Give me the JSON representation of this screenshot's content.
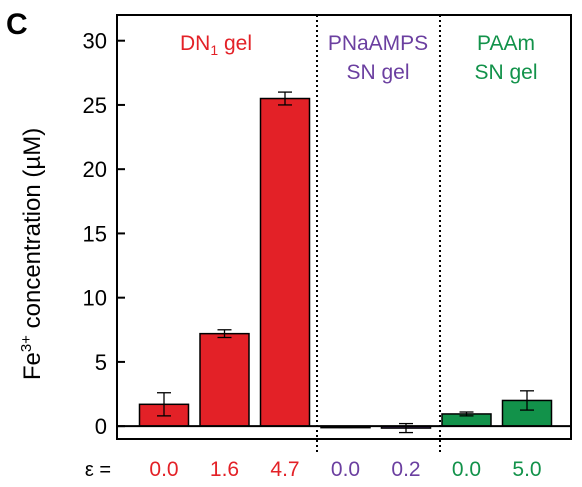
{
  "panel_label": "C",
  "colors": {
    "red": "#e32127",
    "purple": "#6b3fa0",
    "green": "#12924a",
    "axis": "#000000"
  },
  "chart_data": {
    "type": "bar",
    "ylabel_prefix": "Fe",
    "ylabel_sup": "3+",
    "ylabel_suffix": " concentration (µM)",
    "ylim": [
      -1,
      32
    ],
    "yticks": [
      0,
      5,
      10,
      15,
      20,
      25,
      30
    ],
    "x_prefix": "ε =",
    "grid": false,
    "groups": [
      {
        "title_main": "DN",
        "title_sub": "1",
        "title_rest": " gel",
        "title_line2": "",
        "color": "#e32127"
      },
      {
        "title_main": "PNaAMPS",
        "title_sub": "",
        "title_rest": "",
        "title_line2": "SN gel",
        "color": "#6b3fa0"
      },
      {
        "title_main": "PAAm",
        "title_sub": "",
        "title_rest": "",
        "title_line2": "SN gel",
        "color": "#12924a"
      }
    ],
    "bars": [
      {
        "group": 0,
        "epsilon": "0.0",
        "value": 1.7,
        "error": 0.9
      },
      {
        "group": 0,
        "epsilon": "1.6",
        "value": 7.2,
        "error": 0.3
      },
      {
        "group": 0,
        "epsilon": "4.7",
        "value": 25.5,
        "error": 0.5
      },
      {
        "group": 1,
        "epsilon": "0.0",
        "value": -0.05,
        "error": 0.05
      },
      {
        "group": 1,
        "epsilon": "0.2",
        "value": -0.15,
        "error": 0.35
      },
      {
        "group": 2,
        "epsilon": "0.0",
        "value": 0.95,
        "error": 0.15
      },
      {
        "group": 2,
        "epsilon": "5.0",
        "value": 2.0,
        "error": 0.75
      }
    ]
  }
}
